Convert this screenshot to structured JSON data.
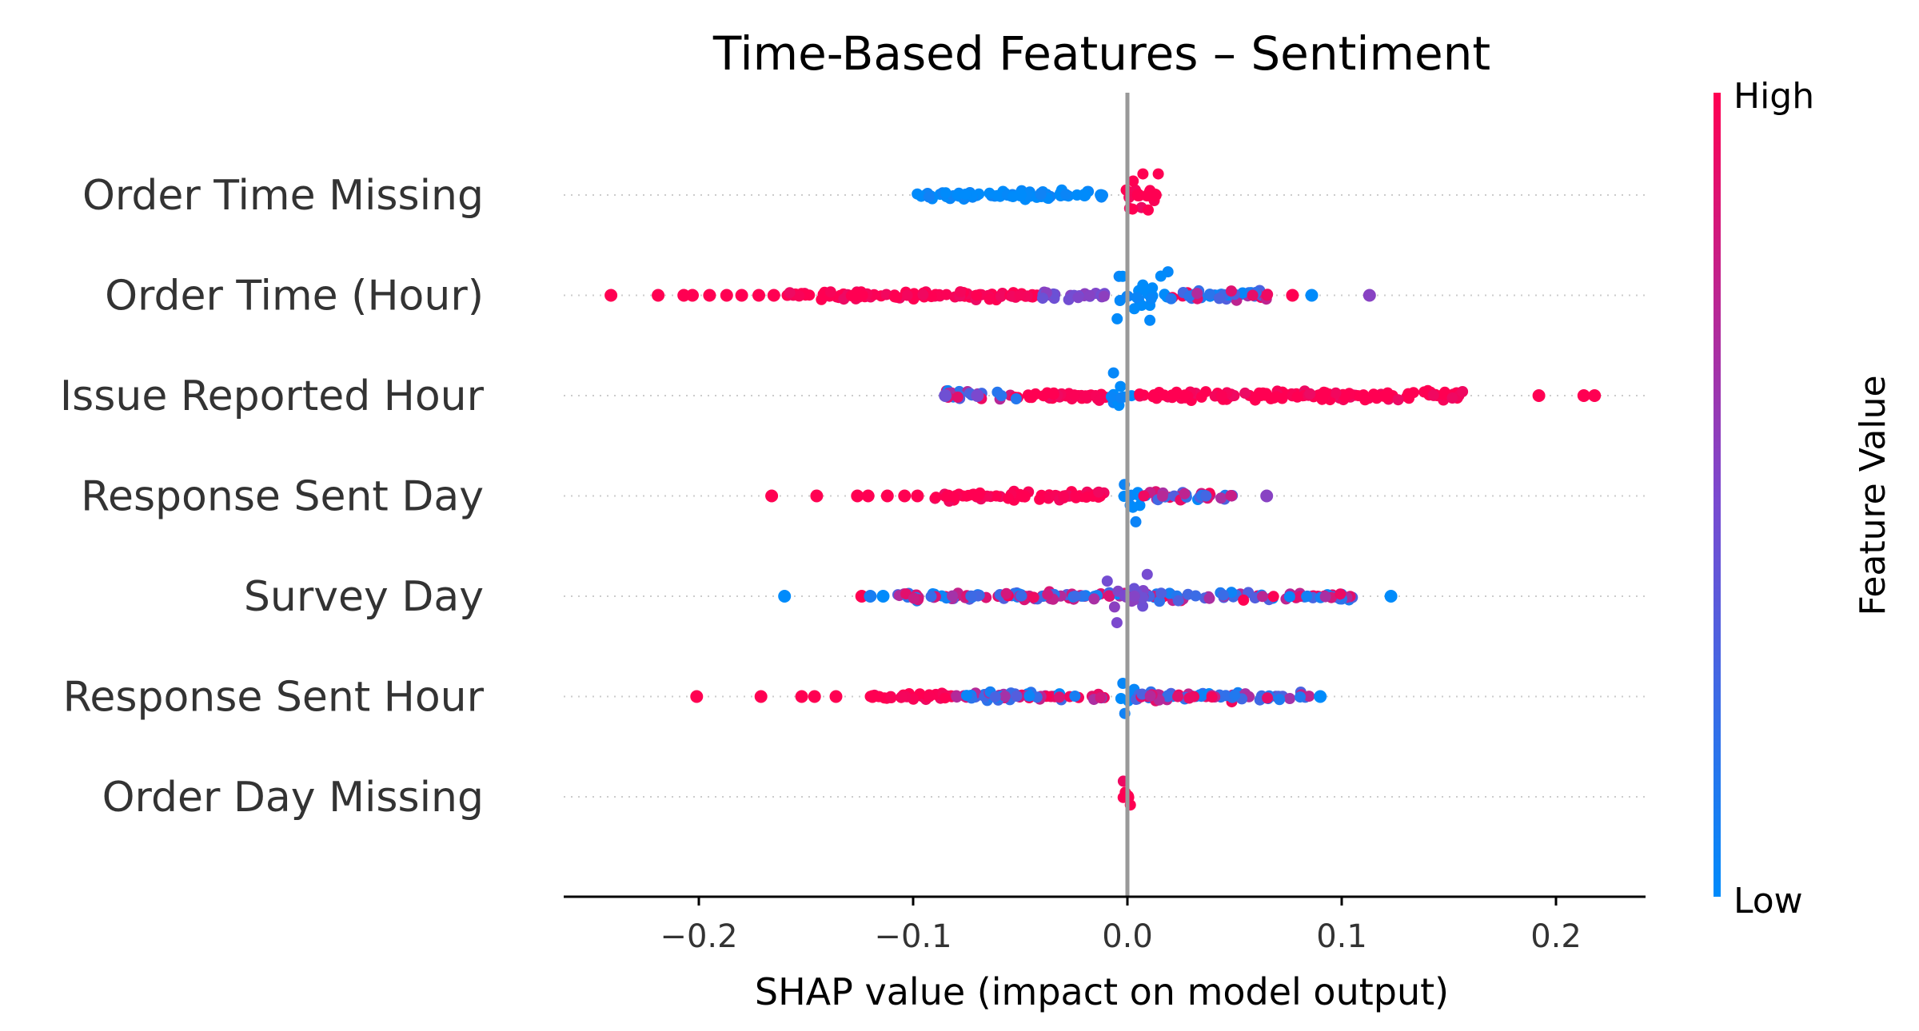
{
  "chart_data": {
    "type": "scatter",
    "subtype": "shap-beeswarm",
    "title": "Time-Based Features – Sentiment",
    "xlabel": "SHAP value (impact on model output)",
    "xlim": [
      -0.265,
      0.24
    ],
    "xticks": [
      -0.2,
      -0.1,
      0.0,
      0.1,
      0.2
    ],
    "xtick_labels": [
      "−0.2",
      "−0.1",
      "0.0",
      "0.1",
      "0.2"
    ],
    "zero_line": 0.0,
    "grid": false,
    "colorbar": {
      "label": "Feature Value",
      "high_label": "High",
      "low_label": "Low",
      "high_color": "#ff0052",
      "mid_color": "#7b49cf",
      "low_color": "#008bfb"
    },
    "features": [
      {
        "name": "Order Time Missing",
        "min": -0.102,
        "max": 0.016,
        "dense": [
          {
            "from": -0.102,
            "to": -0.01,
            "color": "low"
          },
          {
            "from": -0.001,
            "to": 0.016,
            "color": "high"
          }
        ],
        "points": [
          {
            "x": -0.05,
            "v": 0.0
          },
          {
            "x": -0.02,
            "v": 0.0
          },
          {
            "x": 0.005,
            "v": 1.0
          },
          {
            "x": 0.01,
            "v": 1.0
          },
          {
            "x": 0.013,
            "v": 1.0
          }
        ]
      },
      {
        "name": "Order Time (Hour)",
        "min": -0.241,
        "max": 0.113,
        "dense": [
          {
            "from": -0.159,
            "to": -0.04,
            "color": "high"
          },
          {
            "from": -0.04,
            "to": -0.01,
            "color": "mid"
          },
          {
            "from": -0.005,
            "to": 0.02,
            "color": "low"
          },
          {
            "from": 0.02,
            "to": 0.07,
            "color": "mixed"
          }
        ],
        "points": [
          {
            "x": -0.241,
            "v": 1.0
          },
          {
            "x": -0.219,
            "v": 1.0
          },
          {
            "x": -0.207,
            "v": 1.0
          },
          {
            "x": -0.203,
            "v": 1.0
          },
          {
            "x": -0.195,
            "v": 1.0
          },
          {
            "x": -0.187,
            "v": 1.0
          },
          {
            "x": -0.18,
            "v": 1.0
          },
          {
            "x": -0.172,
            "v": 1.0
          },
          {
            "x": -0.165,
            "v": 1.0
          },
          {
            "x": 0.077,
            "v": 1.0
          },
          {
            "x": 0.086,
            "v": 0.0
          },
          {
            "x": 0.113,
            "v": 0.55
          }
        ]
      },
      {
        "name": "Issue Reported Hour",
        "min": -0.085,
        "max": 0.218,
        "dense": [
          {
            "from": -0.085,
            "to": -0.05,
            "color": "mixed"
          },
          {
            "from": -0.05,
            "to": -0.01,
            "color": "high"
          },
          {
            "from": -0.008,
            "to": 0.003,
            "color": "low"
          },
          {
            "from": 0.003,
            "to": 0.158,
            "color": "high"
          }
        ],
        "points": [
          {
            "x": -0.085,
            "v": 0.45
          },
          {
            "x": -0.07,
            "v": 0.5
          },
          {
            "x": 0.192,
            "v": 1.0
          },
          {
            "x": 0.213,
            "v": 1.0
          },
          {
            "x": 0.218,
            "v": 1.0
          }
        ]
      },
      {
        "name": "Response Sent Day",
        "min": -0.166,
        "max": 0.065,
        "dense": [
          {
            "from": -0.09,
            "to": -0.01,
            "color": "high"
          },
          {
            "from": -0.004,
            "to": 0.006,
            "color": "low"
          },
          {
            "from": 0.006,
            "to": 0.05,
            "color": "mixed"
          }
        ],
        "points": [
          {
            "x": -0.166,
            "v": 1.0
          },
          {
            "x": -0.145,
            "v": 1.0
          },
          {
            "x": -0.126,
            "v": 1.0
          },
          {
            "x": -0.121,
            "v": 1.0
          },
          {
            "x": -0.112,
            "v": 1.0
          },
          {
            "x": -0.104,
            "v": 1.0
          },
          {
            "x": -0.098,
            "v": 1.0
          },
          {
            "x": 0.065,
            "v": 0.55
          }
        ]
      },
      {
        "name": "Survey Day",
        "min": -0.16,
        "max": 0.123,
        "dense": [
          {
            "from": -0.11,
            "to": 0.105,
            "color": "mixed"
          },
          {
            "from": -0.01,
            "to": 0.01,
            "color": "mid"
          }
        ],
        "points": [
          {
            "x": -0.16,
            "v": 0.0
          },
          {
            "x": -0.124,
            "v": 1.0
          },
          {
            "x": -0.12,
            "v": 0.1
          },
          {
            "x": -0.114,
            "v": 0.0
          },
          {
            "x": 0.123,
            "v": 0.0
          }
        ]
      },
      {
        "name": "Response Sent Hour",
        "min": -0.201,
        "max": 0.09,
        "dense": [
          {
            "from": -0.12,
            "to": -0.08,
            "color": "high"
          },
          {
            "from": -0.08,
            "to": -0.01,
            "color": "mixed"
          },
          {
            "from": -0.004,
            "to": 0.004,
            "color": "low"
          },
          {
            "from": 0.004,
            "to": 0.085,
            "color": "mixed"
          }
        ],
        "points": [
          {
            "x": -0.201,
            "v": 1.0
          },
          {
            "x": -0.171,
            "v": 1.0
          },
          {
            "x": -0.152,
            "v": 1.0
          },
          {
            "x": -0.146,
            "v": 1.0
          },
          {
            "x": -0.136,
            "v": 1.0
          },
          {
            "x": -0.119,
            "v": 1.0
          },
          {
            "x": 0.09,
            "v": 0.0
          }
        ]
      },
      {
        "name": "Order Day Missing",
        "min": -0.002,
        "max": 0.002,
        "dense": [
          {
            "from": -0.002,
            "to": 0.002,
            "color": "high"
          }
        ],
        "points": [
          {
            "x": 0.0,
            "v": 1.0
          }
        ]
      }
    ]
  }
}
